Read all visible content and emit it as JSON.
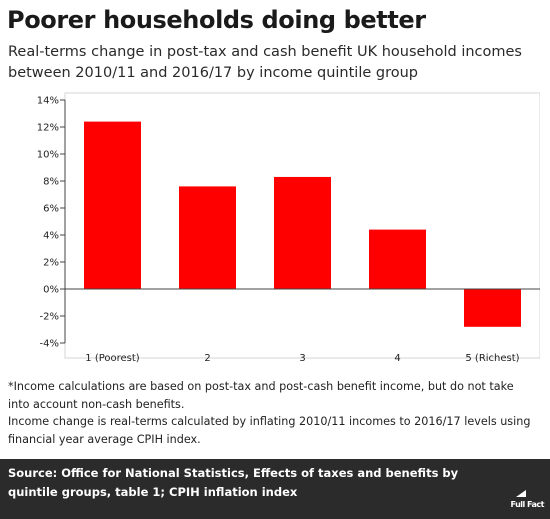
{
  "title": "Poorer households doing better",
  "subtitle": "Real-terms change in post-tax and cash benefit UK household incomes between 2010/11 and 2016/17 by income quintile group",
  "chart_data": {
    "type": "bar",
    "categories": [
      "1 (Poorest)",
      "2",
      "3",
      "4",
      "5 (Richest)"
    ],
    "values": [
      12.4,
      7.6,
      8.3,
      4.4,
      -2.8
    ],
    "title": "",
    "xlabel": "",
    "ylabel": "",
    "ylim": [
      -4,
      14
    ],
    "yticks": [
      -4,
      -2,
      0,
      2,
      4,
      6,
      8,
      10,
      12,
      14
    ],
    "ytick_labels": [
      "-4%",
      "-2%",
      "0%",
      "2%",
      "4%",
      "6%",
      "8%",
      "10%",
      "12%",
      "14%"
    ],
    "grid": false,
    "bar_color": "#ff0000"
  },
  "notes": [
    "*Income calculations are based on post-tax and post-cash benefit income, but do not take into account non-cash benefits.",
    "Income change is real-terms calculated by inflating 2010/11 incomes to 2016/17 levels using financial year average CPIH index."
  ],
  "source": "Source: Office for National Statistics, Effects of taxes and benefits by quintile groups, table 1; CPIH inflation index",
  "logo": {
    "text": "Full Fact",
    "icon": "full-fact-logo-icon"
  },
  "colors": {
    "footer_bg": "#2b2b2b",
    "bar": "#ff0000"
  }
}
